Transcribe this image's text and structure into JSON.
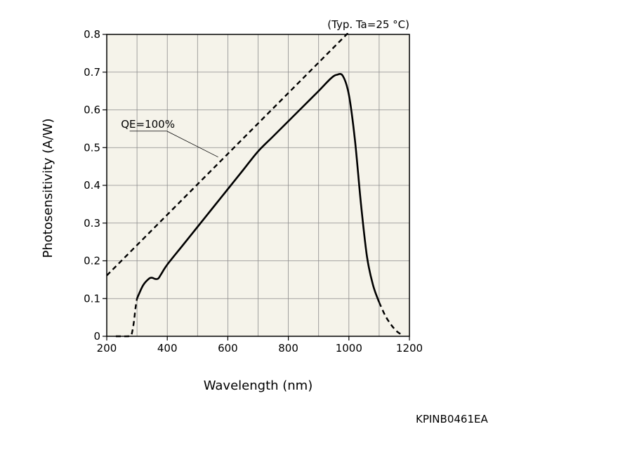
{
  "chart_data": {
    "type": "line",
    "title": "",
    "condition": "(Typ. Ta=25 °C)",
    "xlabel": "Wavelength (nm)",
    "ylabel": "Photosensitivity (A/W)",
    "xlim": [
      200,
      1200
    ],
    "ylim": [
      0,
      0.8
    ],
    "grid": true,
    "background_color": "#f5f3ea",
    "x_ticks": [
      200,
      400,
      600,
      800,
      1000,
      1200
    ],
    "x_tick_labels": [
      "200",
      "400",
      "600",
      "800",
      "1000",
      "1200"
    ],
    "y_ticks": [
      0,
      0.1,
      0.2,
      0.3,
      0.4,
      0.5,
      0.6,
      0.7,
      0.8
    ],
    "y_tick_labels": [
      "0",
      "0.1",
      "0.2",
      "0.3",
      "0.4",
      "0.5",
      "0.6",
      "0.7",
      "0.8"
    ],
    "series": [
      {
        "name": "QE=100%",
        "style": "dashed",
        "x": [
          200,
          1000
        ],
        "y": [
          0.161,
          0.806
        ]
      },
      {
        "name": "",
        "style": "solid",
        "x": [
          300,
          320,
          340,
          350,
          360,
          370,
          380,
          400,
          450,
          500,
          550,
          600,
          650,
          700,
          750,
          800,
          850,
          900,
          940,
          960,
          980,
          1000,
          1020,
          1040,
          1060,
          1080,
          1100
        ],
        "y": [
          0.1,
          0.135,
          0.153,
          0.155,
          0.152,
          0.153,
          0.165,
          0.19,
          0.24,
          0.29,
          0.34,
          0.39,
          0.44,
          0.49,
          0.53,
          0.57,
          0.61,
          0.65,
          0.683,
          0.693,
          0.69,
          0.64,
          0.52,
          0.35,
          0.21,
          0.135,
          0.09
        ]
      },
      {
        "name": "",
        "style": "dashed",
        "x": [
          230,
          250,
          270,
          280,
          285,
          290,
          295,
          300
        ],
        "y": [
          0,
          0,
          0,
          0.002,
          0.015,
          0.04,
          0.075,
          0.1
        ]
      },
      {
        "name": "",
        "style": "dashed",
        "x": [
          1100,
          1120,
          1140,
          1160,
          1180
        ],
        "y": [
          0.09,
          0.055,
          0.03,
          0.012,
          0.002
        ]
      }
    ],
    "annotations": [
      {
        "text": "QE=100%"
      }
    ],
    "figure_code": "KPINB0461EA"
  }
}
